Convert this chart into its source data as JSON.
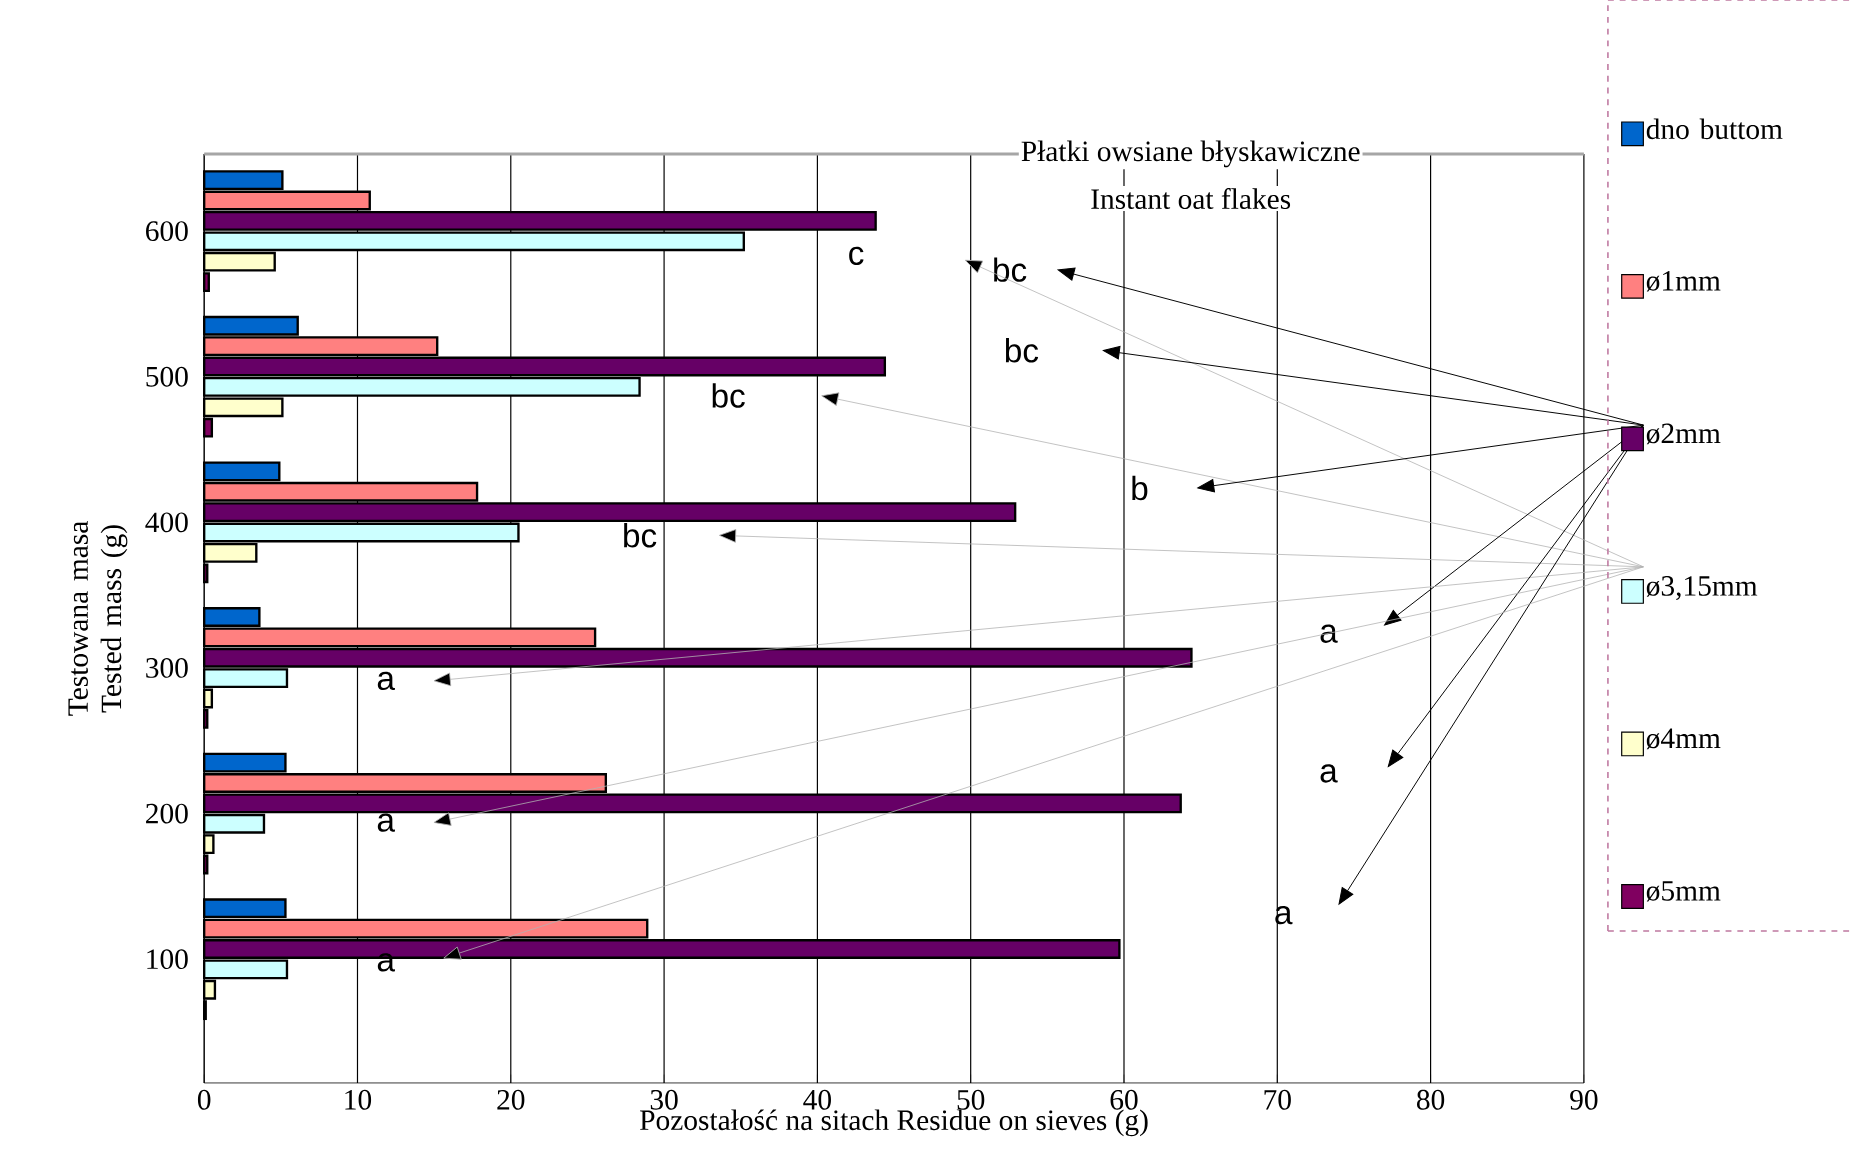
{
  "chart_data": {
    "type": "bar",
    "orientation": "horizontal",
    "title": "Płatki owsiane błyskawiczne",
    "subtitle": "Instant oat flakes",
    "xlabel": "Pozostałość na sitach  Residue on sieves  (g)",
    "ylabel": "Testowana masa Tested mass (g)",
    "categories": [
      "600",
      "500",
      "400",
      "300",
      "200",
      "100"
    ],
    "series": [
      {
        "name": "dno buttom",
        "color": "#0066cc",
        "values": [
          5.1,
          6.1,
          4.9,
          3.6,
          5.3,
          5.3
        ]
      },
      {
        "name": "ø1mm",
        "color": "#ff8080",
        "values": [
          10.8,
          15.2,
          17.8,
          25.5,
          26.2,
          28.9
        ]
      },
      {
        "name": "ø2mm",
        "color": "#660066",
        "values": [
          43.8,
          44.4,
          52.9,
          64.4,
          63.7,
          59.7
        ]
      },
      {
        "name": "ø3,15mm",
        "color": "#ccffff",
        "values": [
          35.2,
          28.4,
          20.5,
          5.4,
          3.9,
          5.4
        ]
      },
      {
        "name": "ø4mm",
        "color": "#ffffcc",
        "values": [
          4.6,
          5.1,
          3.4,
          0.5,
          0.6,
          0.7
        ]
      },
      {
        "name": "ø5mm",
        "color": "#800060",
        "values": [
          0.3,
          0.5,
          0.2,
          0.2,
          0.2,
          0.1
        ]
      }
    ],
    "xlim": [
      0,
      90
    ],
    "xticks": [
      0,
      10,
      20,
      30,
      40,
      50,
      60,
      70,
      80,
      90
    ],
    "grid": "x",
    "legend": "right",
    "annotations": [
      "bc",
      "c",
      "bc",
      "bc",
      "b",
      "bc",
      "a",
      "a",
      "a",
      "a",
      "a",
      "a"
    ]
  }
}
